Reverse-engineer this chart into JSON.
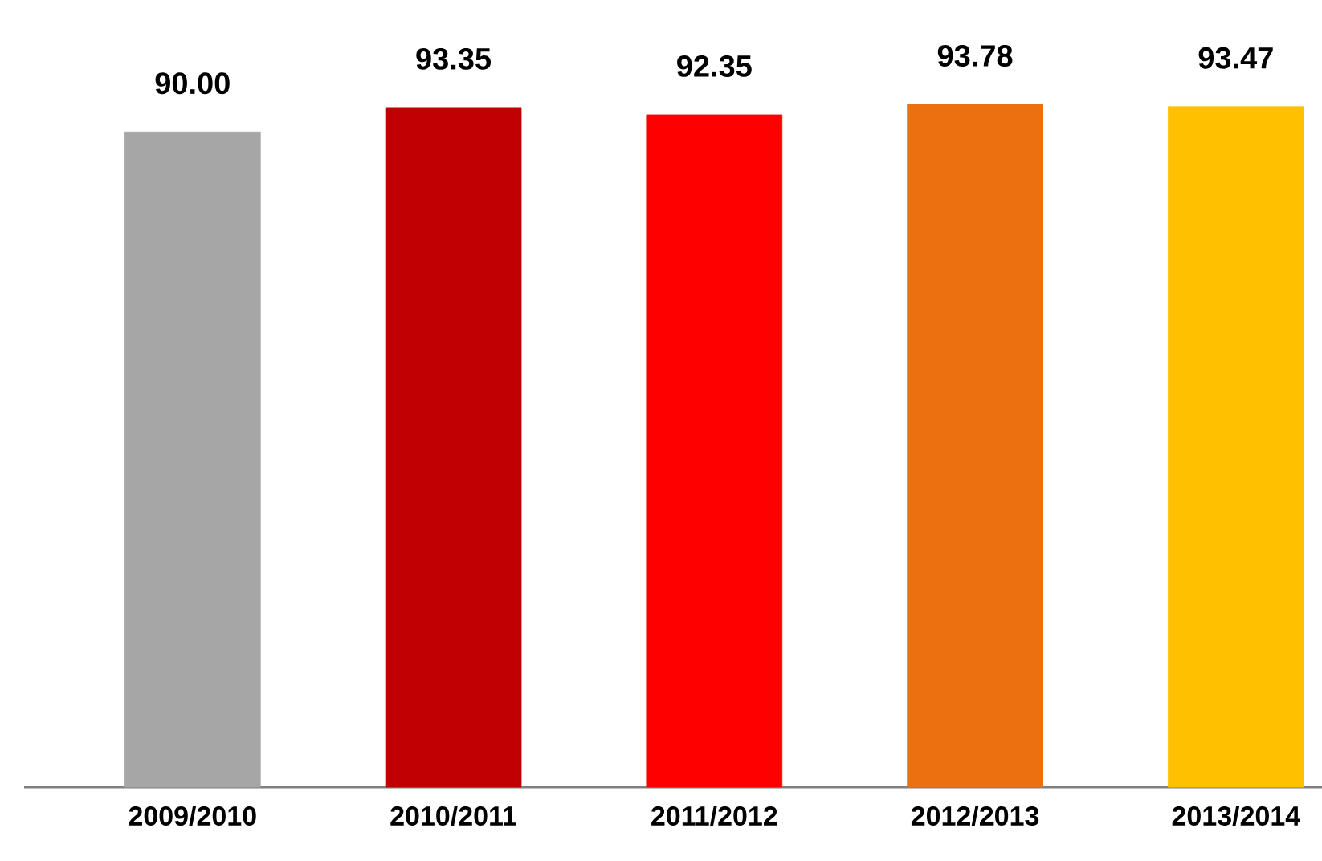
{
  "chart_data": {
    "type": "bar",
    "categories": [
      "2009/2010",
      "2010/2011",
      "2011/2012",
      "2012/2013",
      "2013/2014"
    ],
    "values": [
      90.0,
      93.35,
      92.35,
      93.78,
      93.47
    ],
    "colors": [
      "#a6a6a6",
      "#c00000",
      "#ff0000",
      "#ed7010",
      "#ffc000"
    ],
    "value_labels": [
      "90.00",
      "93.35",
      "92.35",
      "93.78",
      "93.47"
    ]
  }
}
